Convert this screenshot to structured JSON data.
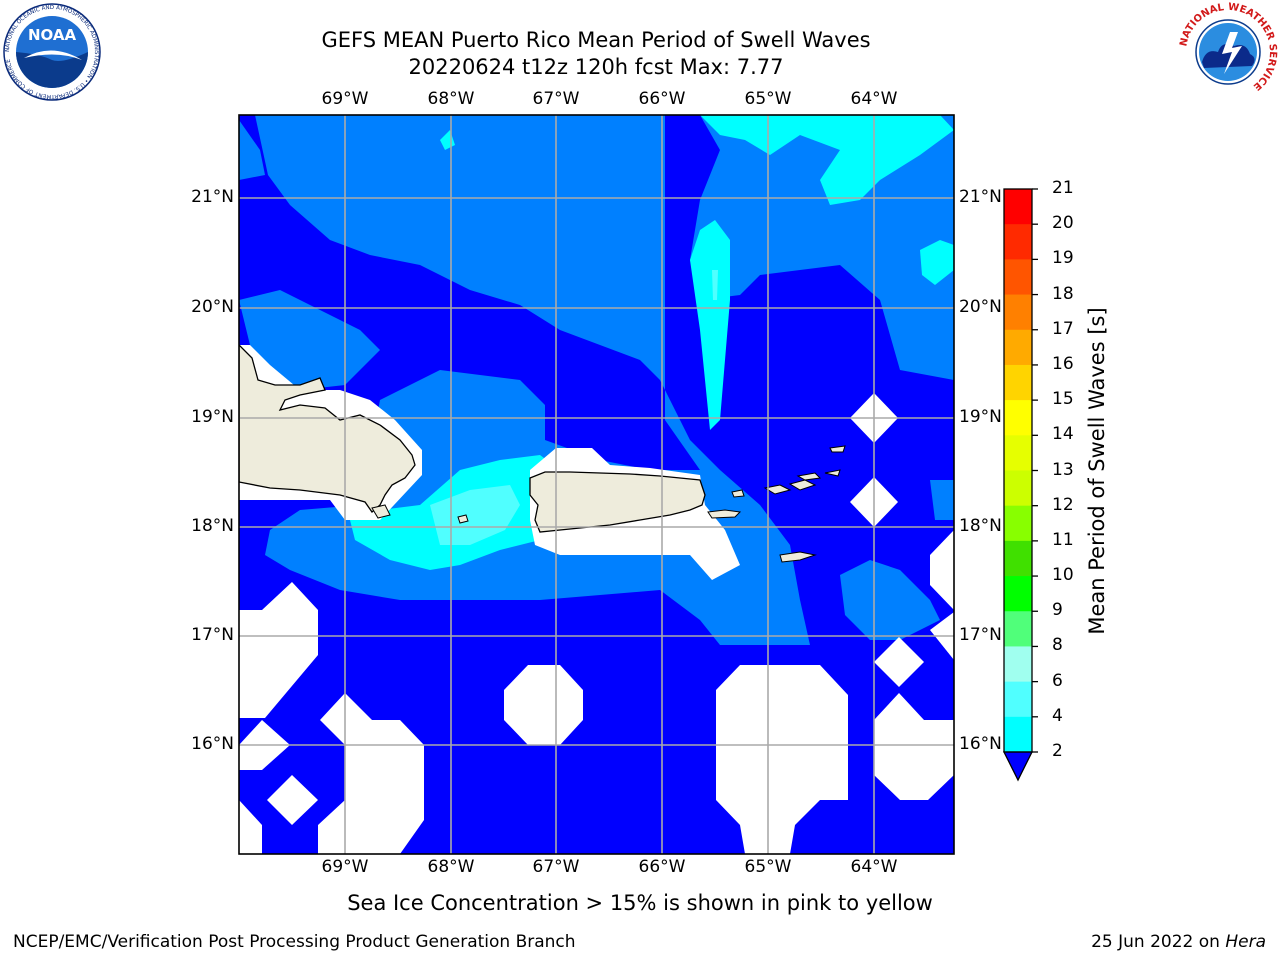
{
  "title": {
    "line1": "GEFS MEAN Puerto Rico Mean Period of Swell Waves",
    "line2": "20220624 t12z 120h fcst   Max: 7.77"
  },
  "map": {
    "lon_labels": [
      "69°W",
      "68°W",
      "67°W",
      "66°W",
      "65°W",
      "64°W"
    ],
    "lat_labels": [
      "21°N",
      "20°N",
      "19°N",
      "18°N",
      "17°N",
      "16°N"
    ],
    "colors": {
      "ocean_deep": "#0000ff",
      "ocean_mid": "#0080ff",
      "ocean_light": "#00ffff",
      "land": "#eeecdc",
      "masked": "#ffffff",
      "grid": "#aaaaaa"
    }
  },
  "colorbar": {
    "title": "Mean Period of Swell Waves [s]",
    "ticks": [
      "21",
      "20",
      "19",
      "18",
      "17",
      "16",
      "15",
      "14",
      "13",
      "12",
      "11",
      "10",
      "9",
      "8",
      "6",
      "4",
      "2"
    ],
    "colors": [
      "#ff0000",
      "#ff2a00",
      "#ff5500",
      "#ff8000",
      "#ffaa00",
      "#ffd400",
      "#ffff00",
      "#e6ff00",
      "#ccff00",
      "#88ff00",
      "#40e000",
      "#00ff00",
      "#50ff7a",
      "#a0ffef",
      "#50ffff",
      "#00ffff",
      "#00bfff",
      "#0080ff"
    ],
    "underflow_color": "#0000ff"
  },
  "caption": "Sea Ice Concentration > 15% is shown in pink to yellow",
  "footer": {
    "left": "NCEP/EMC/Verification Post Processing Product Generation Branch",
    "right_prefix": "25 Jun 2022 on ",
    "right_host": "Hera"
  },
  "logos": {
    "noaa": {
      "text": "NOAA",
      "ring_text": "NATIONAL OCEANIC AND ATMOSPHERIC ADMINISTRATION • U.S. DEPARTMENT OF COMMERCE"
    },
    "nws": {
      "ring_text": "NATIONAL WEATHER SERVICE"
    }
  }
}
